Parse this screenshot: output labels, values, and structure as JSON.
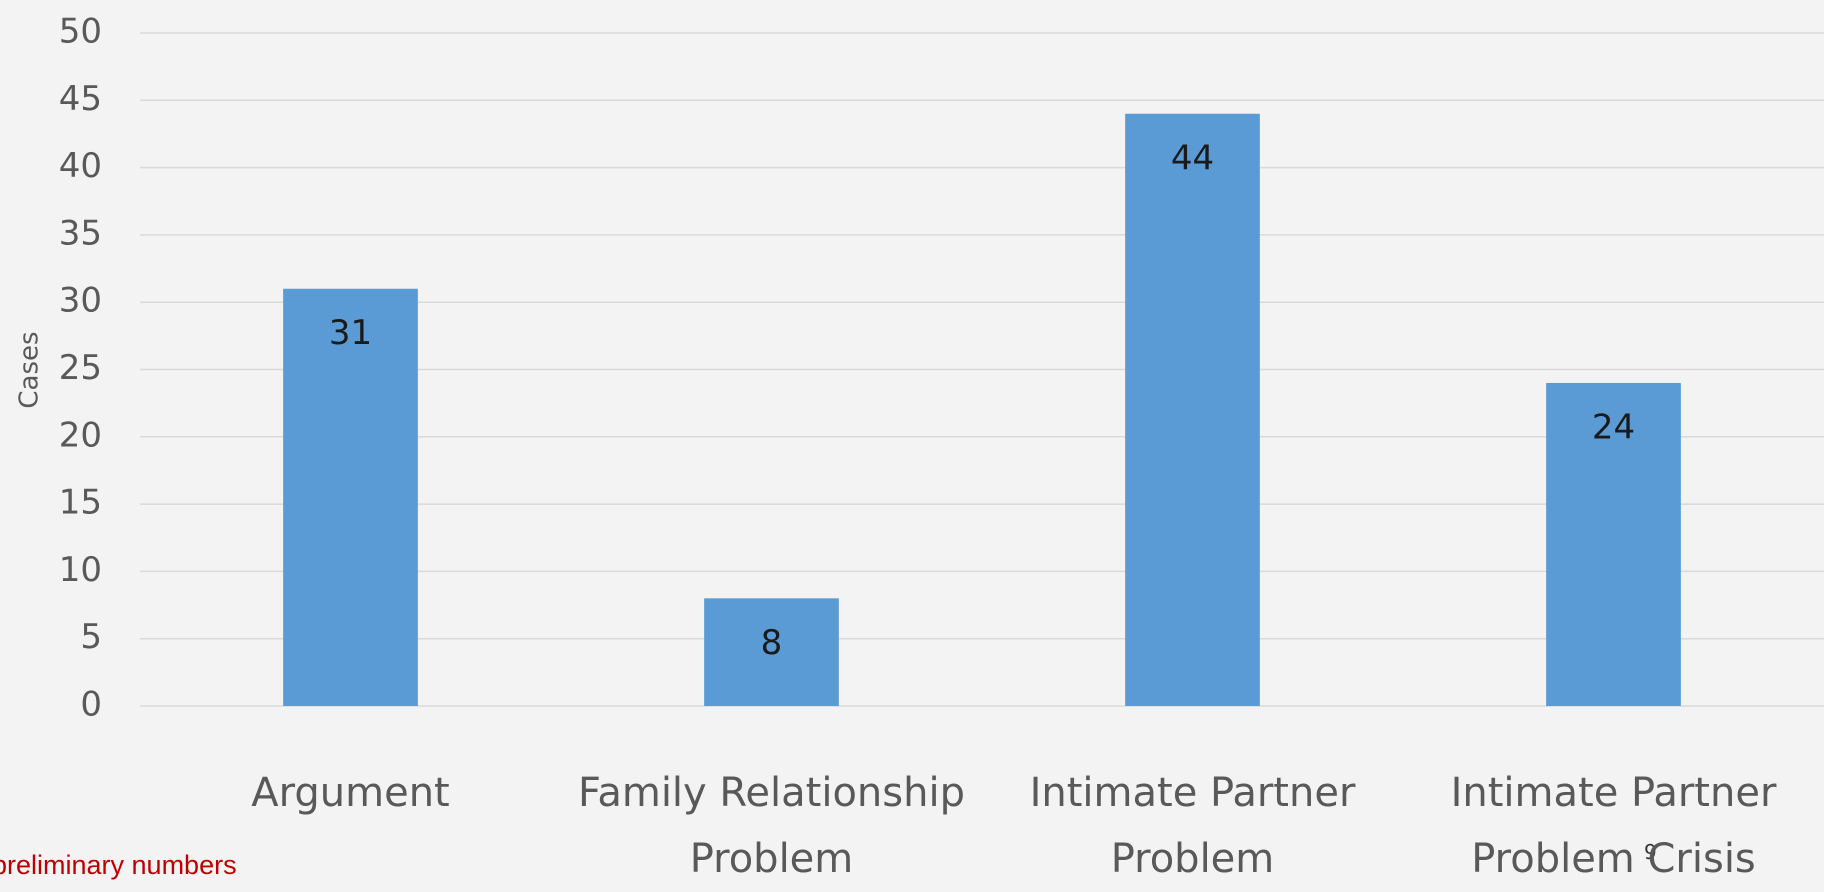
{
  "chart_data": {
    "type": "bar",
    "y_label": "Cases",
    "categories": [
      "Argument",
      "Family Relationship Problem",
      "Intimate Partner Problem",
      "Intimate Partner Problem Crisis"
    ],
    "values": [
      31,
      8,
      44,
      24
    ],
    "color": "#5b9bd5",
    "ylim": [
      0,
      50
    ],
    "yticks": [
      0,
      5,
      10,
      15,
      20,
      25,
      30,
      35,
      40,
      45,
      50
    ],
    "grid": true,
    "footnote": "preliminary numbers",
    "slide_number": "9"
  }
}
